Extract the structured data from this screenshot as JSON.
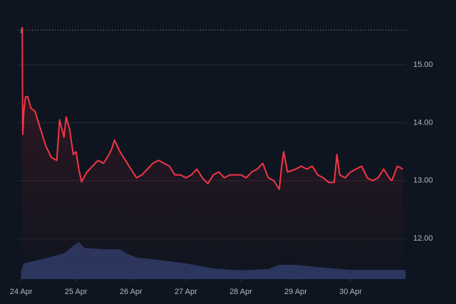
{
  "chart_data": {
    "type": "line",
    "xticks": [
      {
        "value": 0,
        "label": "24 Apr"
      },
      {
        "value": 1,
        "label": "25 Apr"
      },
      {
        "value": 2,
        "label": "26 Apr"
      },
      {
        "value": 3,
        "label": "27 Apr"
      },
      {
        "value": 4,
        "label": "28 Apr"
      },
      {
        "value": 5,
        "label": "29 Apr"
      },
      {
        "value": 6,
        "label": "30 Apr"
      }
    ],
    "xlim": [
      -0.06,
      7.01
    ],
    "ylim": [
      11.3,
      16.12
    ],
    "yticks": [
      {
        "value": 12,
        "label": "12.00"
      },
      {
        "value": 13,
        "label": "13.00"
      },
      {
        "value": 14,
        "label": "14.00"
      },
      {
        "value": 15,
        "label": "15.00"
      }
    ],
    "y2lim": [
      0,
      100
    ],
    "grid": true,
    "reference_line": 15.6,
    "series": [
      {
        "color": "#26a69a",
        "x": [
          0,
          0.02
        ],
        "values": [
          15.55,
          15.65
        ]
      },
      {
        "color": "#f23645",
        "area": true,
        "x": [
          0.02,
          0.03,
          0.05,
          0.08,
          0.12,
          0.18,
          0.25,
          0.35,
          0.45,
          0.55,
          0.65,
          0.7,
          0.78,
          0.82,
          0.88,
          0.95,
          1.0,
          1.05,
          1.1,
          1.2,
          1.3,
          1.4,
          1.5,
          1.6,
          1.65,
          1.7,
          1.8,
          1.9,
          2.0,
          2.1,
          2.2,
          2.3,
          2.4,
          2.5,
          2.6,
          2.7,
          2.8,
          2.9,
          3.0,
          3.1,
          3.2,
          3.3,
          3.4,
          3.5,
          3.6,
          3.7,
          3.8,
          3.9,
          4.0,
          4.1,
          4.2,
          4.3,
          4.4,
          4.5,
          4.6,
          4.7,
          4.75,
          4.78,
          4.85,
          5.0,
          5.1,
          5.2,
          5.3,
          5.4,
          5.5,
          5.6,
          5.7,
          5.75,
          5.8,
          5.9,
          6.0,
          6.1,
          6.2,
          6.3,
          6.4,
          6.5,
          6.6,
          6.7,
          6.75,
          6.85,
          6.95
        ],
        "values": [
          15.65,
          13.8,
          14.2,
          14.45,
          14.45,
          14.25,
          14.2,
          13.9,
          13.6,
          13.4,
          13.35,
          14.05,
          13.75,
          14.1,
          13.9,
          13.45,
          13.5,
          13.2,
          12.98,
          13.15,
          13.25,
          13.35,
          13.3,
          13.45,
          13.55,
          13.7,
          13.5,
          13.35,
          13.2,
          13.05,
          13.1,
          13.2,
          13.3,
          13.35,
          13.3,
          13.25,
          13.1,
          13.1,
          13.05,
          13.1,
          13.2,
          13.05,
          12.95,
          13.1,
          13.15,
          13.05,
          13.1,
          13.1,
          13.1,
          13.05,
          13.15,
          13.2,
          13.3,
          13.05,
          13.0,
          12.85,
          13.3,
          13.5,
          13.15,
          13.2,
          13.25,
          13.2,
          13.25,
          13.1,
          13.05,
          12.97,
          12.97,
          13.45,
          13.1,
          13.05,
          13.15,
          13.2,
          13.25,
          13.05,
          13.0,
          13.05,
          13.2,
          13.05,
          13.0,
          13.25,
          13.2
        ]
      },
      {
        "color": "#2e3b66",
        "axis": "y2",
        "area": true,
        "x": [
          0,
          0.05,
          0.15,
          0.5,
          0.8,
          0.95,
          1.05,
          1.15,
          1.5,
          1.8,
          1.9,
          2.1,
          2.5,
          3.0,
          3.5,
          4.0,
          4.5,
          4.7,
          5.0,
          5.5,
          6.0,
          7.0
        ],
        "values": [
          3,
          5.6,
          6.1,
          7.7,
          9.4,
          12,
          13.3,
          11.2,
          10.7,
          10.7,
          9.4,
          7.7,
          6.9,
          5.6,
          3.8,
          3.1,
          3.6,
          5.1,
          5.1,
          4.1,
          3.3,
          3.3
        ]
      }
    ]
  }
}
